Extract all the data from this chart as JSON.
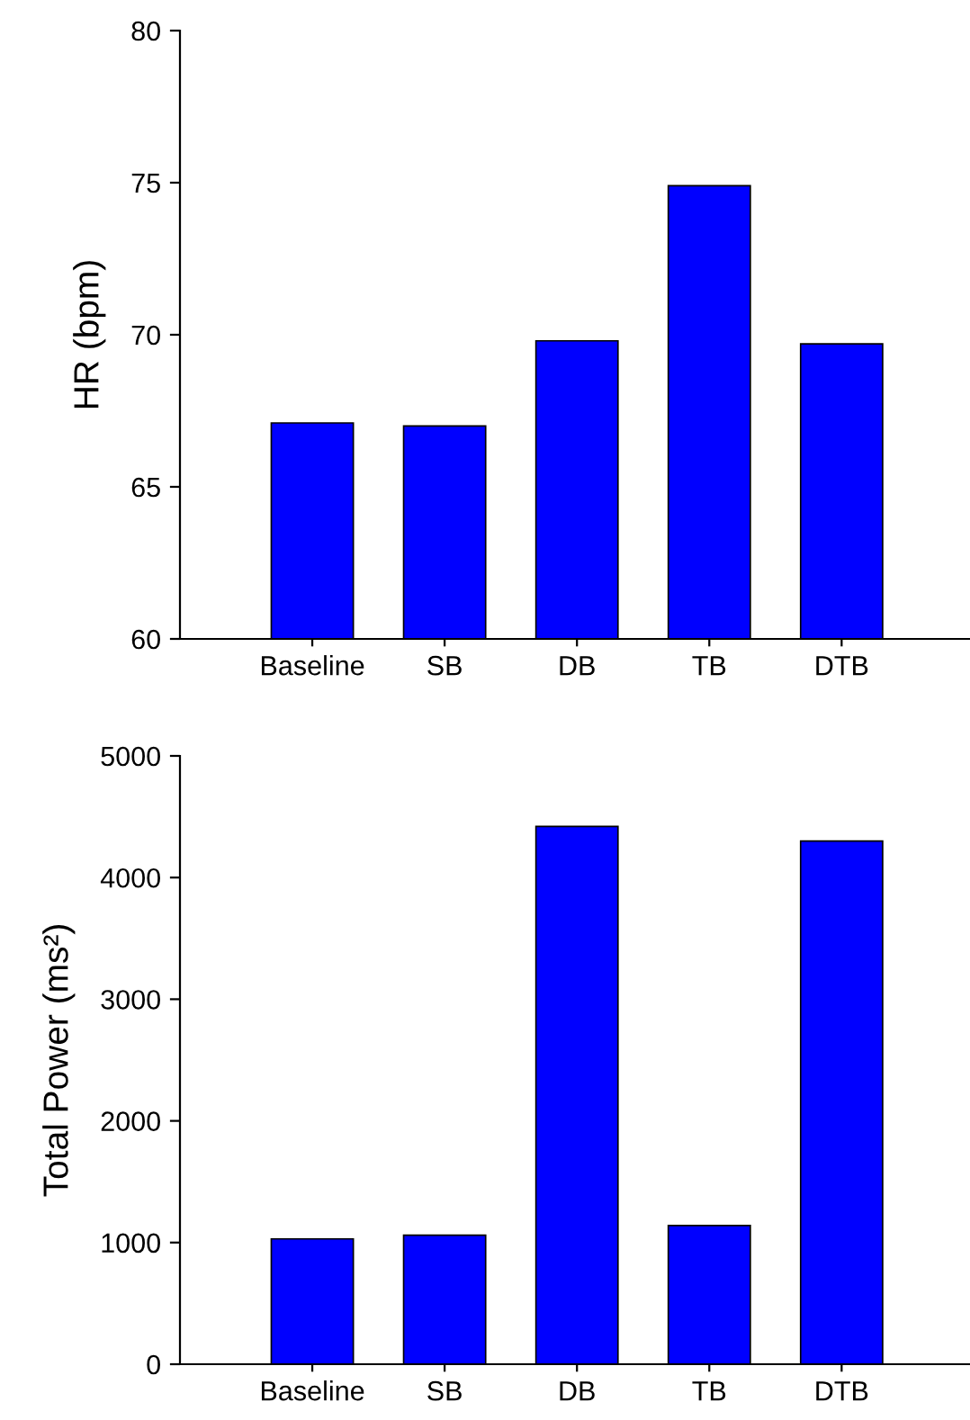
{
  "chart_data": [
    {
      "type": "bar",
      "ylabel": "HR (bpm)",
      "categories": [
        "Baseline",
        "SB",
        "DB",
        "TB",
        "DTB"
      ],
      "values": [
        67.1,
        67.0,
        69.8,
        74.9,
        69.7
      ],
      "color": "#0000ff",
      "ylim": [
        60,
        80
      ],
      "yticks": [
        60,
        65,
        70,
        75,
        80
      ],
      "grid": false,
      "legend": false
    },
    {
      "type": "bar",
      "ylabel": "Total Power (ms²)",
      "categories": [
        "Baseline",
        "SB",
        "DB",
        "TB",
        "DTB"
      ],
      "values": [
        1030,
        1060,
        4420,
        1140,
        4300
      ],
      "color": "#0000ff",
      "ylim": [
        0,
        5000
      ],
      "yticks": [
        0,
        1000,
        2000,
        3000,
        4000,
        5000
      ],
      "grid": false,
      "legend": false
    }
  ]
}
